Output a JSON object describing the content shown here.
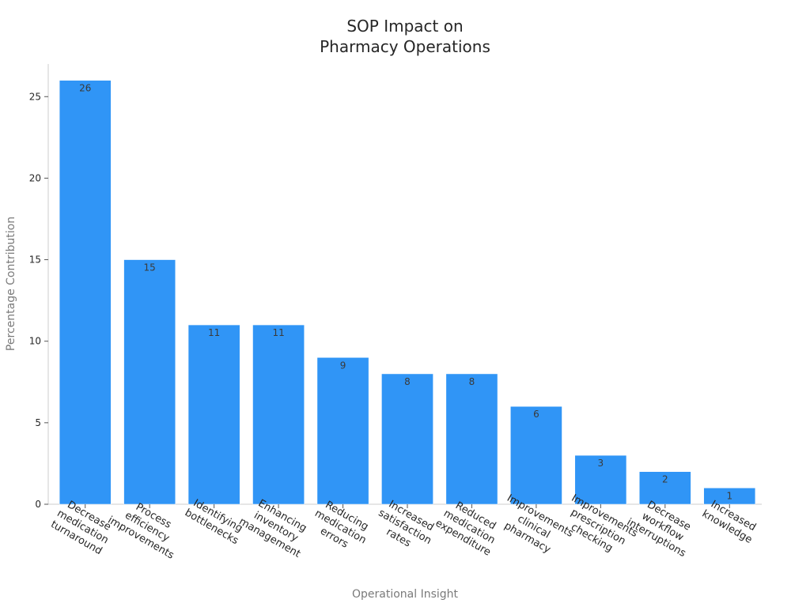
{
  "chart_data": {
    "type": "bar",
    "title_lines": [
      "SOP Impact on",
      "Pharmacy Operations"
    ],
    "xlabel": "Operational Insight",
    "ylabel": "Percentage Contribution",
    "ylim": [
      0,
      27
    ],
    "yticks": [
      0,
      5,
      10,
      15,
      20,
      25
    ],
    "grid": false,
    "bar_color": "#3095f6",
    "categories": [
      [
        "Decrease",
        "medication",
        "turnaround"
      ],
      [
        "Process",
        "efficiency",
        "improvements"
      ],
      [
        "Identifying",
        "bottlenecks"
      ],
      [
        "Enhancing",
        "inventory",
        "management"
      ],
      [
        "Reducing",
        "medication",
        "errors"
      ],
      [
        "Increased",
        "satisfaction",
        "rates"
      ],
      [
        "Reduced",
        "medication",
        "expenditure"
      ],
      [
        "Improvements",
        "clinical",
        "pharmacy"
      ],
      [
        "Improvements",
        "prescription",
        "checking"
      ],
      [
        "Decrease",
        "workflow",
        "interruptions"
      ],
      [
        "Increased",
        "knowledge"
      ]
    ],
    "values": [
      26,
      15,
      11,
      11,
      9,
      8,
      8,
      6,
      3,
      2,
      1
    ]
  }
}
